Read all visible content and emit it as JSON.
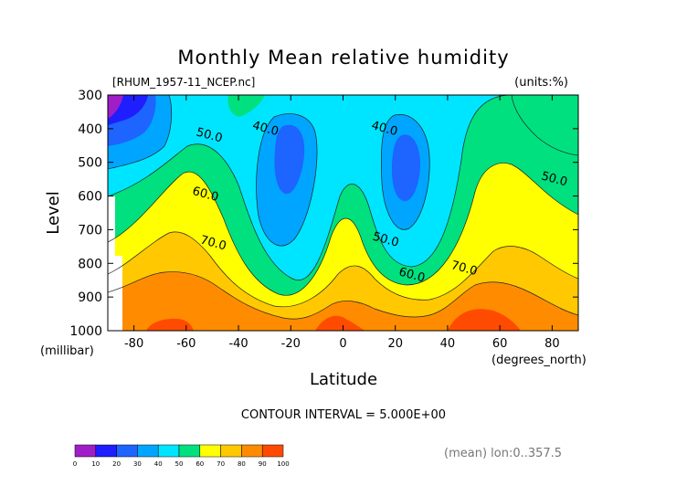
{
  "chart_data": {
    "type": "heatmap",
    "title": "Monthly Mean relative humidity",
    "file_label": "[RHUM_1957-11_NCEP.nc]",
    "units_label": "(units:%)",
    "ylabel": "Level",
    "y_unit": "(millibar)",
    "xlabel": "Latitude",
    "x_unit": "(degrees_north)",
    "xlim": [
      -90,
      90
    ],
    "ylim": [
      1000,
      300
    ],
    "x_ticks": [
      -80,
      -60,
      -40,
      -20,
      0,
      20,
      40,
      60,
      80
    ],
    "y_ticks": [
      300,
      400,
      500,
      600,
      700,
      800,
      900,
      1000
    ],
    "contour_interval_text": "CONTOUR INTERVAL = 5.000E+00",
    "footer_text": "(mean) lon:0..357.5",
    "contour_labels": [
      {
        "text": "40.0",
        "lat": -30,
        "level": 410
      },
      {
        "text": "40.0",
        "lat": 15.5,
        "level": 410
      },
      {
        "text": "50.0",
        "lat": -51.5,
        "level": 430
      },
      {
        "text": "50.0",
        "lat": 80.5,
        "level": 560
      },
      {
        "text": "60.0",
        "lat": -53,
        "level": 605
      },
      {
        "text": "60.0",
        "lat": 26,
        "level": 845
      },
      {
        "text": "50.0",
        "lat": 16,
        "level": 740
      },
      {
        "text": "70.0",
        "lat": -50,
        "level": 750
      },
      {
        "text": "70.0",
        "lat": 46,
        "level": 825
      }
    ],
    "colorbar": {
      "ticks": [
        "0",
        "10",
        "20",
        "30",
        "40",
        "50",
        "60",
        "70",
        "80",
        "90",
        "100"
      ],
      "colors": [
        "#a01ec8",
        "#1e1eff",
        "#1e64ff",
        "#00a5ff",
        "#00e5ff",
        "#00e07f",
        "#ffff00",
        "#ffc800",
        "#ff8c00",
        "#ff4b00"
      ]
    },
    "level_colors": {
      "0-10": "#a01ec8",
      "10-20": "#1e1eff",
      "20-30": "#1e64ff",
      "30-40": "#00a5ff",
      "40-50": "#00e5ff",
      "50-60": "#00e07f",
      "60-70": "#ffff00",
      "70-80": "#ffc800",
      "80-90": "#ff8c00",
      "90-100": "#ff4b00"
    }
  }
}
